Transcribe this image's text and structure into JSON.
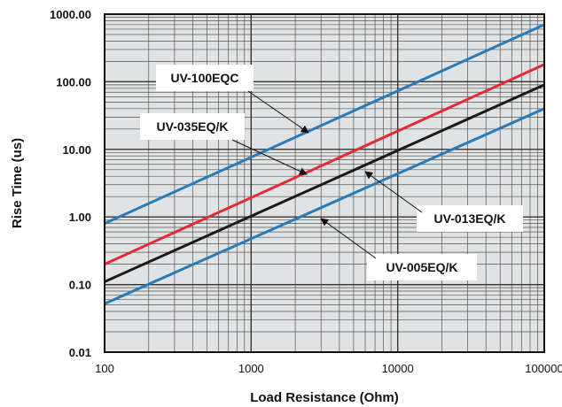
{
  "chart_data": {
    "type": "line",
    "xlabel": "Load Resistance (Ohm)",
    "ylabel": "Rise Time (us)",
    "xscale": "log",
    "yscale": "log",
    "xlim": [
      100,
      100000
    ],
    "ylim": [
      0.01,
      1000
    ],
    "x_ticks": [
      "100",
      "1000",
      "10000",
      "100000"
    ],
    "y_ticks": [
      "0.01",
      "0.10",
      "1.00",
      "10.00",
      "100.00",
      "1000.00"
    ],
    "grid": true,
    "series": [
      {
        "name": "UV-100EQC",
        "color": "#2a7ab8",
        "x": [
          100,
          100000
        ],
        "y": [
          0.8,
          700
        ]
      },
      {
        "name": "UV-035EQ/K",
        "color": "#e32b36",
        "x": [
          100,
          100000
        ],
        "y": [
          0.2,
          180
        ]
      },
      {
        "name": "UV-013EQ/K",
        "color": "#1a1a1a",
        "x": [
          100,
          100000
        ],
        "y": [
          0.11,
          90
        ]
      },
      {
        "name": "UV-005EQ/K",
        "color": "#2a7ab8",
        "x": [
          100,
          100000
        ],
        "y": [
          0.052,
          40
        ]
      }
    ]
  }
}
